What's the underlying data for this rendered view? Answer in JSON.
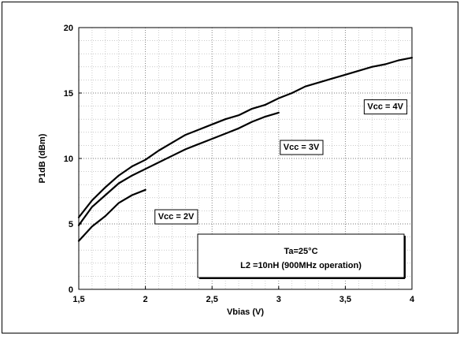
{
  "chart_data": {
    "type": "line",
    "title": "",
    "xlabel": "Vbias (V)",
    "ylabel": "P1dB (dBm)",
    "xlim": [
      1.5,
      4
    ],
    "ylim": [
      0,
      20
    ],
    "grid": true,
    "x_ticks": [
      1.5,
      2,
      2.5,
      3,
      3.5,
      4
    ],
    "x_tick_labels": [
      "1,5",
      "2",
      "2,5",
      "3",
      "3,5",
      "4"
    ],
    "y_ticks": [
      0,
      5,
      10,
      15,
      20
    ],
    "y_tick_labels": [
      "0",
      "5",
      "10",
      "15",
      "20"
    ],
    "series": [
      {
        "name": "Vcc = 4V",
        "color": "#000000",
        "points": [
          [
            1.5,
            5.5
          ],
          [
            1.6,
            6.8
          ],
          [
            1.7,
            7.8
          ],
          [
            1.8,
            8.7
          ],
          [
            1.9,
            9.4
          ],
          [
            2.0,
            9.9
          ],
          [
            2.1,
            10.6
          ],
          [
            2.2,
            11.2
          ],
          [
            2.3,
            11.8
          ],
          [
            2.4,
            12.2
          ],
          [
            2.5,
            12.6
          ],
          [
            2.6,
            13.0
          ],
          [
            2.7,
            13.3
          ],
          [
            2.8,
            13.8
          ],
          [
            2.9,
            14.1
          ],
          [
            3.0,
            14.6
          ],
          [
            3.1,
            15.0
          ],
          [
            3.2,
            15.5
          ],
          [
            3.3,
            15.8
          ],
          [
            3.4,
            16.1
          ],
          [
            3.5,
            16.4
          ],
          [
            3.6,
            16.7
          ],
          [
            3.7,
            17.0
          ],
          [
            3.8,
            17.2
          ],
          [
            3.9,
            17.5
          ],
          [
            4.0,
            17.7
          ]
        ]
      },
      {
        "name": "Vcc = 3V",
        "color": "#000000",
        "points": [
          [
            1.5,
            4.9
          ],
          [
            1.6,
            6.3
          ],
          [
            1.7,
            7.2
          ],
          [
            1.8,
            8.1
          ],
          [
            1.9,
            8.7
          ],
          [
            2.0,
            9.2
          ],
          [
            2.1,
            9.7
          ],
          [
            2.2,
            10.2
          ],
          [
            2.3,
            10.7
          ],
          [
            2.4,
            11.1
          ],
          [
            2.5,
            11.5
          ],
          [
            2.6,
            11.9
          ],
          [
            2.7,
            12.3
          ],
          [
            2.8,
            12.8
          ],
          [
            2.9,
            13.2
          ],
          [
            3.0,
            13.5
          ]
        ]
      },
      {
        "name": "Vcc = 2V",
        "color": "#000000",
        "points": [
          [
            1.5,
            3.7
          ],
          [
            1.6,
            4.8
          ],
          [
            1.7,
            5.6
          ],
          [
            1.8,
            6.6
          ],
          [
            1.9,
            7.2
          ],
          [
            2.0,
            7.6
          ]
        ]
      }
    ],
    "annotations": [
      {
        "text": "Vcc = 4V",
        "at": [
          3.8,
          14.0
        ]
      },
      {
        "text": "Vcc = 3V",
        "at": [
          3.17,
          10.9
        ]
      },
      {
        "text": "Vcc = 2V",
        "at": [
          2.23,
          5.6
        ]
      }
    ],
    "info_box": {
      "line1": "Ta=25°C",
      "line2": "L2 =10nH (900MHz operation)"
    }
  }
}
